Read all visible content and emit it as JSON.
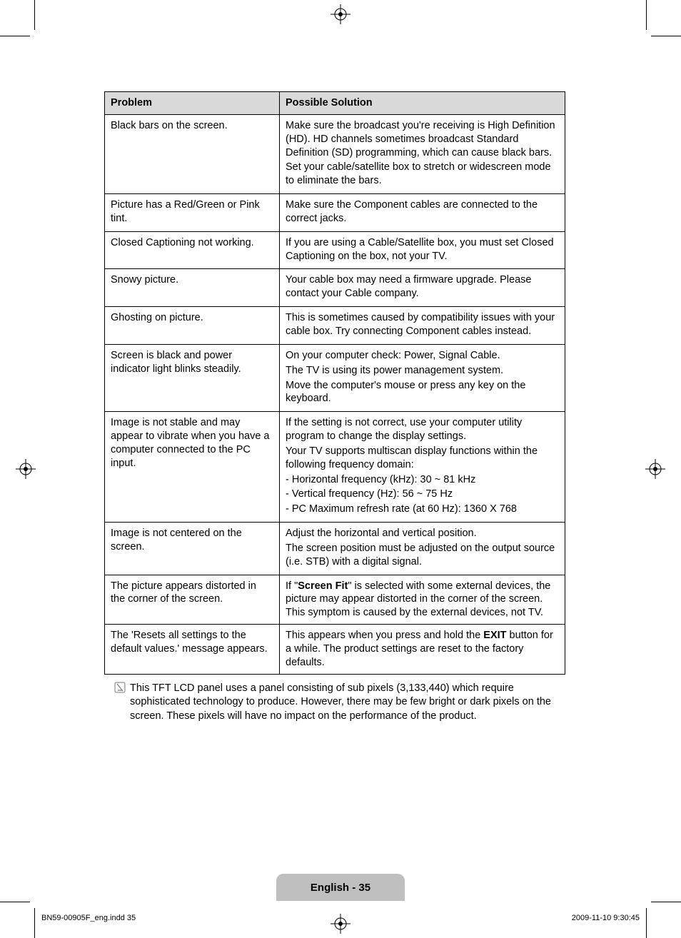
{
  "table": {
    "header": {
      "problem": "Problem",
      "solution": "Possible Solution"
    },
    "rows": [
      {
        "problem": "Black bars on the screen.",
        "solution_parts": [
          "Make sure the broadcast you're receiving is High Definition (HD). HD channels sometimes broadcast Standard Definition (SD) programming, which can cause black bars.",
          "Set your cable/satellite box to stretch or widescreen mode to eliminate the bars."
        ]
      },
      {
        "problem": "Picture has a Red/Green or Pink tint.",
        "solution_parts": [
          "Make sure the Component cables are connected to the correct jacks."
        ]
      },
      {
        "problem": "Closed Captioning not working.",
        "solution_parts": [
          "If you are using a Cable/Satellite box, you must set Closed Captioning on the box, not your TV."
        ]
      },
      {
        "problem": "Snowy picture.",
        "solution_parts": [
          "Your cable box may need a firmware upgrade. Please contact your Cable company."
        ]
      },
      {
        "problem": "Ghosting on picture.",
        "solution_parts": [
          "This is sometimes caused by compatibility issues with your cable box. Try connecting Component cables instead."
        ]
      },
      {
        "problem": "Screen is black and power indicator light blinks steadily.",
        "solution_parts": [
          "On your computer check: Power, Signal Cable.",
          "The TV is using its power management system.",
          "Move the computer's mouse or press any key on the keyboard."
        ]
      },
      {
        "problem": "Image is not stable and may appear to vibrate when you have a computer connected to the PC input.",
        "solution_parts": [
          "If the setting is not correct, use your computer utility program to change the display settings.",
          "Your TV supports multiscan display functions within the following frequency domain:",
          "- Horizontal frequency (kHz): 30 ~ 81 kHz",
          "- Vertical frequency (Hz): 56 ~ 75 Hz",
          "- PC Maximum refresh rate (at 60 Hz): 1360 X 768"
        ]
      },
      {
        "problem": "Image is not centered on the screen.",
        "solution_parts": [
          "Adjust the horizontal and vertical position.",
          "The screen position must be adjusted on the output source (i.e. STB) with a digital signal."
        ]
      },
      {
        "problem": "The picture appears distorted in the corner of the screen.",
        "solution_html": "If \"<b>Screen Fit</b>\" is selected with some external devices, the picture may appear distorted in the corner of the screen. This symptom is caused by the external devices, not TV."
      },
      {
        "problem": "The 'Resets all settings to the default values.' message appears.",
        "solution_html": "This appears when you press and hold the <b>EXIT</b> button for a while. The product settings are reset to the factory defaults."
      }
    ]
  },
  "note": "This TFT LCD panel uses a panel consisting of sub pixels (3,133,440) which require sophisticated technology to produce. However, there may be few bright or dark pixels on the screen. These pixels will have no impact on the performance of the product.",
  "page_label": "English - 35",
  "footer": {
    "left": "BN59-00905F_eng.indd   35",
    "right": "2009-11-10   9:30:45"
  },
  "colors": {
    "header_bg": "#d9d9d9",
    "page_label_bg": "#bfbfbf",
    "border": "#000000",
    "text": "#000000",
    "background": "#ffffff"
  },
  "typography": {
    "body_fontsize_pt": 11,
    "font_family": "Arial"
  }
}
